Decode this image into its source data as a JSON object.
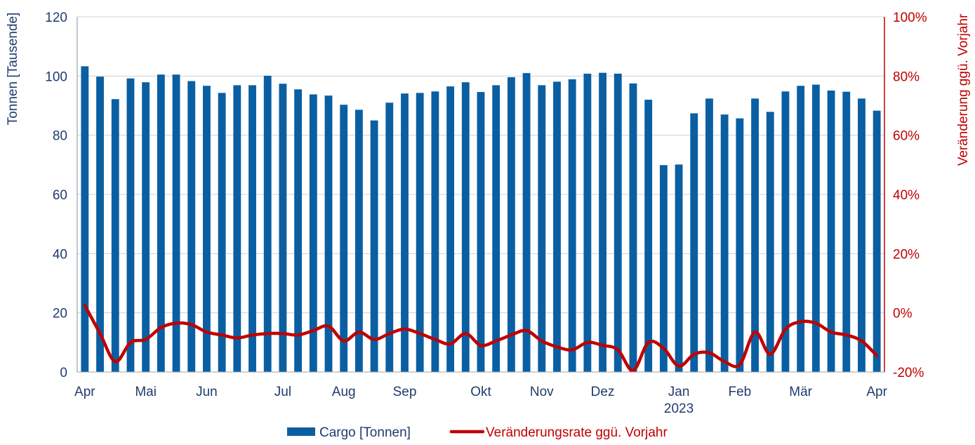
{
  "colors": {
    "bar": "#0a5fa2",
    "line": "#c00000",
    "axis_left_text": "#1f3c6e",
    "axis_right_text": "#c00000",
    "grid": "#d0d0d0"
  },
  "chart_data": {
    "type": "bar",
    "combo": "bar+line",
    "grid": true,
    "legend_position": "bottom",
    "x_labels": [
      {
        "label": "Apr",
        "index": 0
      },
      {
        "label": "Mai",
        "index": 4
      },
      {
        "label": "Jun",
        "index": 8
      },
      {
        "label": "Jul",
        "index": 13
      },
      {
        "label": "Aug",
        "index": 17
      },
      {
        "label": "Sep",
        "index": 21
      },
      {
        "label": "Okt",
        "index": 26
      },
      {
        "label": "Nov",
        "index": 30
      },
      {
        "label": "Dez",
        "index": 34
      },
      {
        "label": "Jan",
        "index": 39,
        "sub": "2023"
      },
      {
        "label": "Feb",
        "index": 43
      },
      {
        "label": "Mär",
        "index": 47
      },
      {
        "label": "Apr",
        "index": 52
      }
    ],
    "y_left": {
      "label": "Tonnen [Tausende]",
      "min": 0,
      "max": 120,
      "ticks": [
        0,
        20,
        40,
        60,
        80,
        100,
        120
      ]
    },
    "y_right": {
      "label": "Veränderung ggü. Vorjahr",
      "min": -20,
      "max": 100,
      "ticks": [
        "-20%",
        "0%",
        "20%",
        "40%",
        "60%",
        "80%",
        "100%"
      ],
      "tick_values": [
        -20,
        0,
        20,
        40,
        60,
        80,
        100
      ]
    },
    "series": [
      {
        "name": "Cargo [Tonnen]",
        "type": "bar",
        "axis": "left",
        "values": [
          103.3,
          99.8,
          92.2,
          99.2,
          97.9,
          100.5,
          100.5,
          98.3,
          96.7,
          94.3,
          96.9,
          96.9,
          100.1,
          97.4,
          95.5,
          93.8,
          93.4,
          90.3,
          88.6,
          85.0,
          91.0,
          94.1,
          94.3,
          94.8,
          96.5,
          97.9,
          94.6,
          96.9,
          99.6,
          101.0,
          96.9,
          98.1,
          98.9,
          100.8,
          101.1,
          100.8,
          97.5,
          92.0,
          69.9,
          70.1,
          87.4,
          92.4,
          87.0,
          85.7,
          92.4,
          87.9,
          94.8,
          96.7,
          97.1,
          95.1,
          94.7,
          92.4,
          88.3
        ]
      },
      {
        "name": "Veränderungsrate ggü. Vorjahr",
        "type": "line",
        "axis": "right",
        "values": [
          2.5,
          -7.0,
          -16.5,
          -10.0,
          -9.0,
          -5.0,
          -3.5,
          -4.0,
          -6.5,
          -7.5,
          -8.5,
          -7.5,
          -7.0,
          -7.0,
          -7.5,
          -6.0,
          -4.5,
          -9.5,
          -6.5,
          -9.0,
          -7.0,
          -5.5,
          -7.0,
          -9.0,
          -10.5,
          -7.0,
          -11.0,
          -9.5,
          -7.5,
          -6.0,
          -9.5,
          -11.5,
          -12.5,
          -10.0,
          -11.0,
          -12.5,
          -19.5,
          -10.0,
          -12.0,
          -18.0,
          -14.0,
          -13.5,
          -16.5,
          -17.5,
          -6.5,
          -14.0,
          -5.5,
          -3.0,
          -3.5,
          -6.5,
          -7.5,
          -9.5,
          -14.5
        ]
      }
    ]
  }
}
